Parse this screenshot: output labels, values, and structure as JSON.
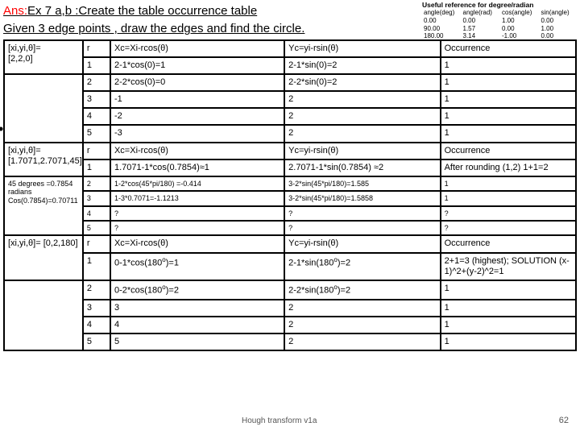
{
  "title": {
    "ans_prefix": "Ans:",
    "line1_rest": "Ex 7 a,b :Create the table occurrence table",
    "line2": "Given 3 edge points , draw the edges and find the circle."
  },
  "ref": {
    "heading": "Useful reference for degree/radian",
    "cols": [
      "angle(deg)",
      "angle(rad)",
      "cos(angle)",
      "sin(angle)"
    ],
    "rows": [
      [
        "0.00",
        "0.00",
        "1.00",
        "0.00"
      ],
      [
        "90.00",
        "1.57",
        "0.00",
        "1.00"
      ],
      [
        "180.00",
        "3.14",
        "-1.00",
        "0.00"
      ]
    ]
  },
  "section1": {
    "left1": "[xi,yi,θ]=",
    "left2": "[2,2,0]",
    "head_r": "r",
    "head_xc": "Xc=Xi-rcos(θ)",
    "head_yc": "Yc=yi-rsin(θ)",
    "head_occ": "Occurrence",
    "rows": [
      {
        "r": "1",
        "xc": "2-1*cos(0)=1",
        "yc": "2-1*sin(0)=2",
        "o": "1"
      },
      {
        "r": "2",
        "xc": "2-2*cos(0)=0",
        "yc": "2-2*sin(0)=2",
        "o": "1"
      },
      {
        "r": "3",
        "xc": "-1",
        "yc": "2",
        "o": "1"
      },
      {
        "r": "4",
        "xc": "-2",
        "yc": "2",
        "o": "1"
      },
      {
        "r": "5",
        "xc": "-3",
        "yc": "2",
        "o": "1"
      }
    ]
  },
  "section2": {
    "leftA": "[xi,yi,θ]= [1.7071,2.7071,45]",
    "leftB": "45 degrees =0.7854 radians Cos(0.7854)=0.70711",
    "head_r": "r",
    "head_xc": "Xc=Xi-rcos(θ)",
    "head_yc": "Yc=yi-rsin(θ)",
    "head_occ": "Occurrence",
    "row1": {
      "r": "1",
      "xc": "1.7071-1*cos(0.7854)≈1",
      "yc": "2.7071-1*sin(0.7854) ≈2",
      "o": "After rounding (1,2) 1+1=2"
    },
    "rows_small": [
      {
        "r": "2",
        "xc": "1-2*cos(45*pi/180) =-0.414",
        "yc": "3-2*sin(45*pi/180)=1.585",
        "o": "1"
      },
      {
        "r": "3",
        "xc": "1-3*0.7071=-1.1213",
        "yc": "3-2*sin(45*pi/180)=1.5858",
        "o": "1"
      },
      {
        "r": "4",
        "xc": "?",
        "yc": "?",
        "o": "?"
      },
      {
        "r": "5",
        "xc": "?",
        "yc": "?",
        "o": "?"
      }
    ]
  },
  "section3": {
    "leftA": "[xi,yi,θ]= [0,2,180]",
    "head_r": "r",
    "head_xc": "Xc=Xi-rcos(θ)",
    "head_yc": "Yc=yi-rsin(θ)",
    "head_occ": "Occurrence",
    "row1": {
      "r": "1",
      "xc_pre": "0-1*cos(180",
      "xc_post": ")=1",
      "yc_pre": "2-1*sin(180",
      "yc_post": ")=2",
      "o": "2+1=3 (highest); SOLUTION (x-1)^2+(y-2)^2=1"
    },
    "rows": [
      {
        "r": "2",
        "xc_pre": "0-2*cos(180",
        "xc_post": ")=2",
        "yc_pre": "2-2*sin(180",
        "yc_post": ")=2",
        "o": "1"
      },
      {
        "r": "3",
        "xc": "3",
        "yc": "2",
        "o": "1"
      },
      {
        "r": "4",
        "xc": "4",
        "yc": "2",
        "o": "1"
      },
      {
        "r": "5",
        "xc": "5",
        "yc": "2",
        "o": "1"
      }
    ]
  },
  "footer": {
    "hough": "Hough transform v1a",
    "num": "62"
  }
}
